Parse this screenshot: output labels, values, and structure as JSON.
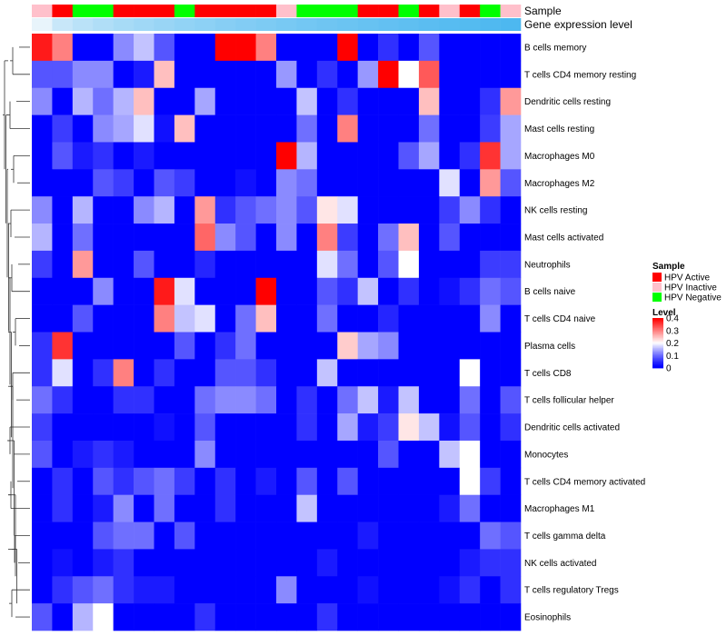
{
  "chart_data": {
    "type": "heatmap",
    "title": "",
    "annotation_tracks": [
      {
        "name": "Sample",
        "values": [
          "HPV Inactive",
          "HPV Active",
          "HPV Negative",
          "HPV Negative",
          "HPV Active",
          "HPV Active",
          "HPV Active",
          "HPV Negative",
          "HPV Active",
          "HPV Active",
          "HPV Active",
          "HPV Active",
          "HPV Inactive",
          "HPV Negative",
          "HPV Negative",
          "HPV Negative",
          "HPV Active",
          "HPV Active",
          "HPV Negative",
          "HPV Active",
          "HPV Inactive",
          "HPV Active",
          "HPV Negative",
          "HPV Inactive"
        ]
      },
      {
        "name": "Gene expression level",
        "values": [
          0.02,
          0.04,
          0.06,
          0.08,
          0.1,
          0.12,
          0.14,
          0.16,
          0.18,
          0.2,
          0.22,
          0.24,
          0.26,
          0.28,
          0.3,
          0.32,
          0.34,
          0.36,
          0.38,
          0.4,
          0.42,
          0.44,
          0.46,
          0.48
        ]
      }
    ],
    "rows": [
      "B cells memory",
      "T cells CD4 memory resting",
      "Dendritic cells resting",
      "Mast cells resting",
      "Macrophages M0",
      "Macrophages M2",
      "NK cells resting",
      "Mast cells activated",
      "Neutrophils",
      "B cells naive",
      "T cells CD4 naive",
      "Plasma cells",
      "T cells CD8",
      "T cells follicular helper",
      "Dendritic cells activated",
      "Monocytes",
      "T cells CD4 memory activated",
      "Macrophages M1",
      "T cells gamma delta",
      "NK cells activated",
      "T cells regulatory  Tregs",
      "Eosinophils"
    ],
    "values": [
      [
        0.38,
        0.3,
        0,
        0,
        0.12,
        0.16,
        0.08,
        0,
        0,
        0.4,
        0.4,
        0.3,
        0,
        0,
        0,
        0.4,
        0,
        0.05,
        0,
        0.08,
        0,
        0,
        0,
        0
      ],
      [
        0.08,
        0.08,
        0.12,
        0.12,
        0,
        0.03,
        0.25,
        0,
        0,
        0,
        0,
        0,
        0.13,
        0,
        0.05,
        0,
        0.13,
        0.4,
        0.2,
        0.33,
        0,
        0,
        0,
        0
      ],
      [
        0.12,
        0,
        0.15,
        0.1,
        0.15,
        0.25,
        0,
        0,
        0.14,
        0,
        0,
        0,
        0,
        0.16,
        0,
        0.05,
        0,
        0,
        0,
        0.25,
        0,
        0,
        0.05,
        0.28
      ],
      [
        0,
        0.06,
        0,
        0.12,
        0.14,
        0.18,
        0.02,
        0.25,
        0,
        0,
        0,
        0,
        0,
        0.1,
        0,
        0.3,
        0,
        0,
        0,
        0.1,
        0,
        0,
        0.06,
        0.14
      ],
      [
        0,
        0.08,
        0.03,
        0.05,
        0,
        0.03,
        0,
        0,
        0,
        0,
        0,
        0,
        0.4,
        0.15,
        0,
        0,
        0,
        0,
        0.08,
        0.14,
        0,
        0.05,
        0.36,
        0.14
      ],
      [
        0,
        0,
        0,
        0.08,
        0.06,
        0,
        0.08,
        0.06,
        0,
        0,
        0.02,
        0,
        0.12,
        0.1,
        0,
        0,
        0,
        0,
        0,
        0,
        0.18,
        0,
        0.28,
        0.08
      ],
      [
        0.12,
        0,
        0.15,
        0,
        0,
        0.12,
        0.15,
        0,
        0.28,
        0.05,
        0.08,
        0.1,
        0.12,
        0.08,
        0.22,
        0.18,
        0,
        0,
        0,
        0,
        0.06,
        0.12,
        0.05,
        0
      ],
      [
        0.15,
        0,
        0.1,
        0,
        0,
        0,
        0,
        0,
        0.32,
        0.12,
        0.08,
        0,
        0.12,
        0,
        0.3,
        0.06,
        0,
        0.1,
        0.25,
        0,
        0.08,
        0,
        0,
        0
      ],
      [
        0.06,
        0,
        0.28,
        0,
        0,
        0.08,
        0,
        0,
        0.04,
        0,
        0,
        0,
        0,
        0,
        0.18,
        0.1,
        0,
        0.08,
        0.2,
        0,
        0,
        0,
        0.06,
        0.06
      ],
      [
        0,
        0,
        0,
        0.12,
        0,
        0,
        0.38,
        0.18,
        0,
        0,
        0,
        0.4,
        0,
        0,
        0.08,
        0.05,
        0.16,
        0,
        0.05,
        0,
        0.02,
        0.05,
        0.1,
        0.08
      ],
      [
        0,
        0,
        0.08,
        0,
        0,
        0,
        0.3,
        0.16,
        0.18,
        0,
        0.1,
        0.25,
        0,
        0,
        0.1,
        0,
        0,
        0.04,
        0,
        0,
        0,
        0,
        0.12,
        0
      ],
      [
        0.05,
        0.36,
        0,
        0,
        0,
        0,
        0,
        0.08,
        0,
        0.05,
        0.1,
        0,
        0,
        0,
        0,
        0.24,
        0.14,
        0.12,
        0,
        0,
        0,
        0,
        0,
        0
      ],
      [
        0.05,
        0.18,
        0,
        0.05,
        0.3,
        0,
        0.05,
        0,
        0,
        0.08,
        0.08,
        0.05,
        0,
        0,
        0.16,
        0,
        0,
        0,
        0,
        0,
        0,
        0.2,
        0,
        0
      ],
      [
        0.1,
        0.05,
        0,
        0,
        0.05,
        0.05,
        0,
        0,
        0.1,
        0.12,
        0.12,
        0.1,
        0,
        0.05,
        0,
        0.1,
        0.16,
        0.03,
        0.16,
        0,
        0,
        0.1,
        0,
        0.08
      ],
      [
        0.06,
        0,
        0,
        0,
        0,
        0,
        0.02,
        0,
        0.08,
        0,
        0,
        0,
        0,
        0.05,
        0,
        0.14,
        0.03,
        0.06,
        0.22,
        0.16,
        0.02,
        0.08,
        0,
        0.05
      ],
      [
        0.08,
        0,
        0.03,
        0.05,
        0.03,
        0,
        0,
        0,
        0.12,
        0,
        0,
        0,
        0,
        0,
        0,
        0,
        0,
        0.08,
        0,
        0,
        0.16,
        0.2,
        0,
        0
      ],
      [
        0,
        0.05,
        0,
        0.08,
        0.05,
        0.08,
        0.1,
        0.06,
        0,
        0.05,
        0,
        0.03,
        0,
        0.08,
        0,
        0.08,
        0,
        0,
        0,
        0,
        0,
        0.2,
        0.06,
        0
      ],
      [
        0,
        0.05,
        0,
        0.03,
        0.12,
        0,
        0.1,
        0,
        0,
        0.05,
        0,
        0,
        0,
        0.16,
        0,
        0,
        0,
        0,
        0,
        0,
        0.03,
        0.1,
        0,
        0
      ],
      [
        0,
        0,
        0,
        0.08,
        0.1,
        0.1,
        0,
        0.08,
        0,
        0,
        0,
        0,
        0,
        0,
        0,
        0,
        0.03,
        0,
        0,
        0,
        0,
        0,
        0.1,
        0.08
      ],
      [
        0,
        0.02,
        0,
        0.03,
        0.05,
        0,
        0,
        0,
        0,
        0,
        0,
        0,
        0,
        0,
        0.03,
        0,
        0,
        0,
        0,
        0,
        0,
        0.03,
        0.05,
        0.05
      ],
      [
        0,
        0.05,
        0.08,
        0.1,
        0.05,
        0.03,
        0.03,
        0,
        0,
        0,
        0,
        0,
        0.12,
        0,
        0,
        0,
        0.02,
        0,
        0,
        0,
        0.02,
        0.05,
        0,
        0.05
      ],
      [
        0.08,
        0,
        0.15,
        0.2,
        0,
        0,
        0,
        0,
        0.05,
        0,
        0,
        0,
        0,
        0,
        0.05,
        0,
        0,
        0,
        0,
        0,
        0,
        0,
        0,
        0
      ]
    ],
    "legend_sample": {
      "title": "Sample",
      "entries": [
        {
          "label": "HPV Active",
          "color": "#ff0000"
        },
        {
          "label": "HPV Inactive",
          "color": "#ffc0cb"
        },
        {
          "label": "HPV Negative",
          "color": "#00ff00"
        }
      ]
    },
    "legend_level": {
      "title": "Level",
      "ticks": [
        "0.4",
        "0.3",
        "0.2",
        "0.1",
        "0"
      ],
      "range": [
        0,
        0.4
      ],
      "colors": [
        "#0000ff",
        "#ffffff",
        "#ff0000"
      ]
    },
    "expression_track_colors": [
      "#e8f4fb",
      "#4db8f0"
    ]
  }
}
